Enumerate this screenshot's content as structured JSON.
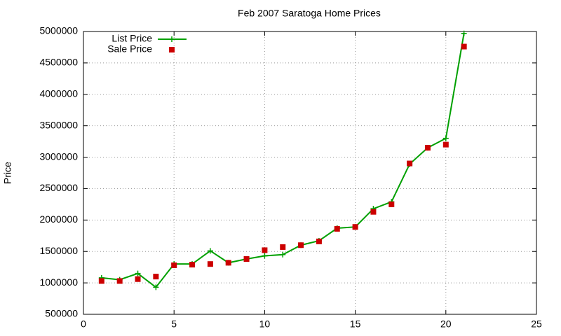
{
  "chart_data": {
    "type": "line",
    "title": "Feb 2007 Saratoga Home Prices",
    "y_label": "Price",
    "x": [
      1,
      2,
      3,
      4,
      5,
      6,
      7,
      8,
      9,
      10,
      11,
      12,
      13,
      14,
      15,
      16,
      17,
      18,
      19,
      20,
      21
    ],
    "series": [
      {
        "name": "List Price",
        "color": "#00a000",
        "style": "linespoints",
        "values": [
          1080000,
          1050000,
          1150000,
          930000,
          1300000,
          1300000,
          1510000,
          1320000,
          1380000,
          1430000,
          1450000,
          1600000,
          1670000,
          1870000,
          1890000,
          2180000,
          2290000,
          2890000,
          3150000,
          3300000,
          4970000
        ]
      },
      {
        "name": "Sale Price",
        "color": "#cc0000",
        "style": "points",
        "values": [
          1030000,
          1030000,
          1060000,
          1100000,
          1280000,
          1290000,
          1300000,
          1320000,
          1380000,
          1520000,
          1570000,
          1600000,
          1660000,
          1860000,
          1890000,
          2130000,
          2250000,
          2900000,
          3150000,
          3200000,
          4760000
        ]
      }
    ],
    "xlim": [
      0,
      25
    ],
    "xticks": [
      0,
      5,
      10,
      15,
      20,
      25
    ],
    "ylim": [
      500000,
      5000000
    ],
    "yticks": [
      500000,
      1000000,
      1500000,
      2000000,
      2500000,
      3000000,
      3500000,
      4000000,
      4500000,
      5000000
    ],
    "grid": true,
    "legend": "top-left"
  }
}
